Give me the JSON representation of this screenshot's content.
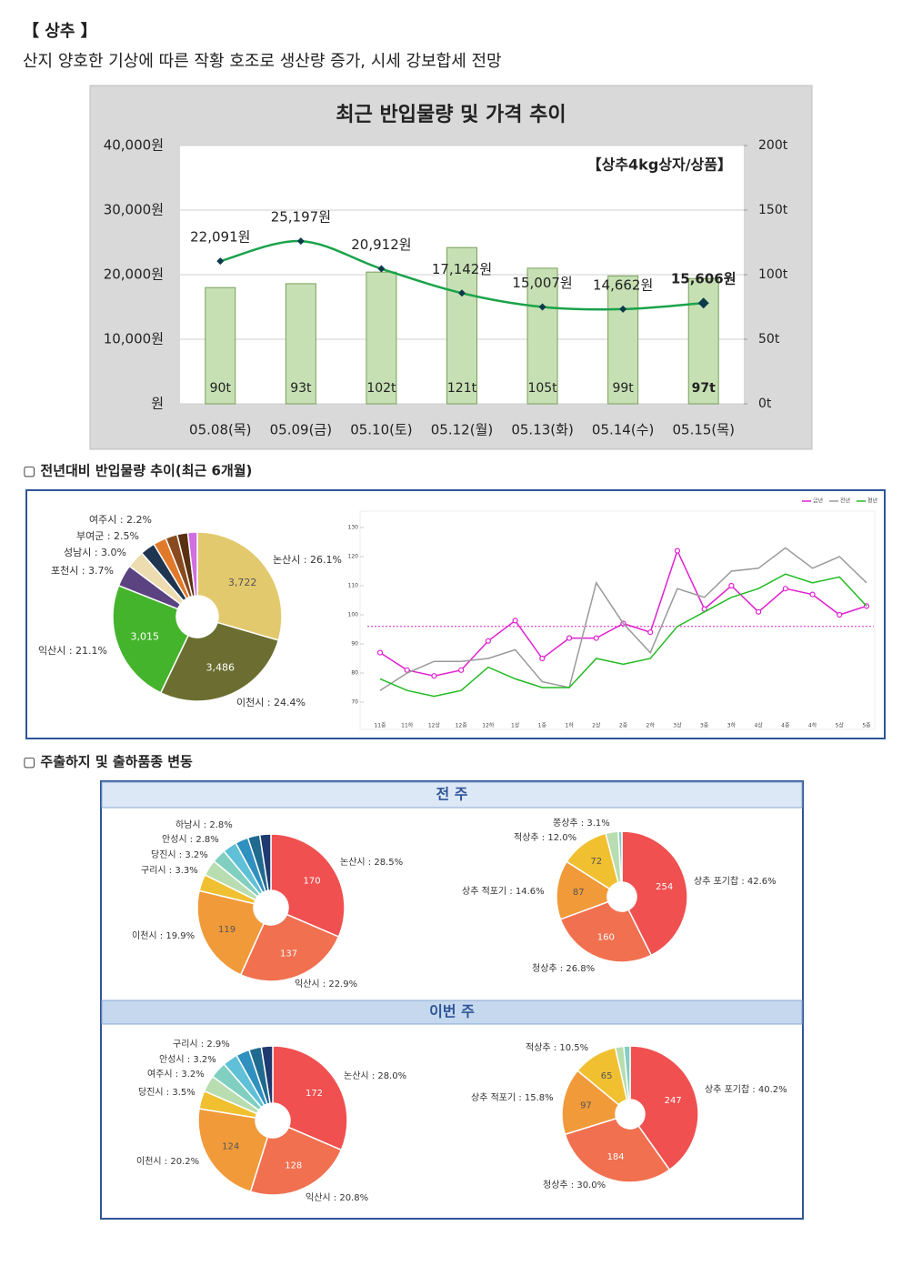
{
  "header": {
    "title": "【 상추 】",
    "subtitle": "산지 양호한 기상에 따른 작황 호조로 생산량 증가, 시세 강보합세 전망"
  },
  "sections": [
    "▢ 전년대비 반입물량 추이(최근 6개월)",
    "▢ 주출하지 및 출하품종 변동"
  ],
  "panels": [
    "전 주",
    "이번 주"
  ],
  "chart_data": [
    {
      "type": "bar_line",
      "title": "최근 반입물량 및 가격 추이",
      "annotation": "【상추4kg상자/상품】",
      "categories": [
        "05.08(목)",
        "05.09(금)",
        "05.10(토)",
        "05.12(월)",
        "05.13(화)",
        "05.14(수)",
        "05.15(목)"
      ],
      "series": [
        {
          "type": "bar",
          "axis": "y2",
          "color": "#c6e0b4",
          "values": [
            90,
            93,
            102,
            121,
            105,
            99,
            97
          ],
          "value_labels": [
            "90t",
            "93t",
            "102t",
            "121t",
            "105t",
            "99t",
            "97t"
          ]
        },
        {
          "type": "line",
          "color": "#1aa34a",
          "values": [
            22091,
            25197,
            20912,
            17142,
            15007,
            14662,
            15606
          ],
          "value_labels": [
            "22,091원",
            "25,197원",
            "20,912원",
            "17,142원",
            "15,007원",
            "14,662원",
            "15,606원"
          ]
        }
      ],
      "ylim": [
        0,
        40000
      ],
      "yticks": [
        {
          "value": 0,
          "label": "원"
        },
        {
          "value": 10000,
          "label": "10,000원"
        },
        {
          "value": 20000,
          "label": "20,000원"
        },
        {
          "value": 30000,
          "label": "30,000원"
        },
        {
          "value": 40000,
          "label": "40,000원"
        }
      ],
      "y2lim": [
        0,
        200
      ],
      "y2ticks": [
        {
          "value": 0,
          "label": "0t"
        },
        {
          "value": 50,
          "label": "50t"
        },
        {
          "value": 100,
          "label": "100t"
        },
        {
          "value": 150,
          "label": "150t"
        },
        {
          "value": 200,
          "label": "200t"
        }
      ],
      "grid": true
    },
    {
      "type": "donut",
      "labels": [
        "논산시 : 26.1%",
        "이천시 : 24.4%",
        "익산시 : 21.1%",
        "포천시 : 3.7%",
        "성남시 : 3.0%",
        "부여군 : 2.5%",
        "여주시 : 2.2%",
        null,
        null,
        null
      ],
      "values": [
        26.1,
        24.4,
        21.1,
        3.7,
        3.0,
        2.5,
        2.2,
        2.0,
        1.8,
        1.6
      ],
      "amount_labels": [
        "3,722",
        "3,486",
        "3,015",
        null,
        null,
        null,
        null,
        null,
        null,
        null
      ],
      "colors": [
        "#e3c96e",
        "#6b6e30",
        "#44b42c",
        "#5b4280",
        "#ecdcb0",
        "#1f3550",
        "#e07a2a",
        "#8a4a20",
        "#5a3010",
        "#d070e0"
      ]
    },
    {
      "type": "line",
      "categories": [
        "11중",
        "11하",
        "12상",
        "12중",
        "12하",
        "1상",
        "1중",
        "1하",
        "2상",
        "2중",
        "2하",
        "3상",
        "3중",
        "3하",
        "4상",
        "4중",
        "4하",
        "5상",
        "5중"
      ],
      "series": [
        {
          "name": "금년",
          "color": "#e020d0",
          "marker": true,
          "values": [
            87,
            81,
            79,
            81,
            91,
            98,
            85,
            92,
            92,
            97,
            94,
            122,
            102,
            110,
            101,
            109,
            107,
            100,
            103
          ]
        },
        {
          "name": "전년",
          "color": "#9a9a9a",
          "marker": false,
          "values": [
            74,
            80,
            84,
            84,
            85,
            88,
            77,
            75,
            111,
            97,
            87,
            109,
            106,
            115,
            116,
            123,
            116,
            120,
            111
          ]
        },
        {
          "name": "평년",
          "color": "#22bb22",
          "marker": false,
          "values": [
            78,
            74,
            72,
            74,
            82,
            78,
            75,
            75,
            85,
            83,
            85,
            96,
            101,
            106,
            109,
            114,
            111,
            113,
            103
          ]
        }
      ],
      "ylim": [
        68,
        132
      ],
      "yticks": [
        70,
        80,
        90,
        100,
        110,
        120,
        130
      ],
      "reference_line": 96,
      "reference_color": "#e020d0",
      "legend": "top-right"
    },
    {
      "type": "donut",
      "labels": [
        "논산시 : 28.5%",
        "익산시 : 22.9%",
        "이천시 : 19.9%",
        "구리시 : 3.3%",
        "당진시 : 3.2%",
        "안성시 : 2.8%",
        "하남시 : 2.8%",
        null,
        null,
        null
      ],
      "values": [
        28.5,
        22.9,
        19.9,
        3.3,
        3.2,
        2.8,
        2.8,
        2.6,
        2.4,
        2.2
      ],
      "amount_labels": [
        "170",
        "137",
        "119",
        null,
        null,
        null,
        null,
        null,
        null,
        null
      ],
      "colors": [
        "#f05050",
        "#f07050",
        "#f09a3a",
        "#f0c030",
        "#b8ddb0",
        "#80cfc0",
        "#60c0d8",
        "#3090c0",
        "#206a90",
        "#1f3a70"
      ]
    },
    {
      "type": "donut",
      "labels": [
        "상추 포기찹 : 42.6%",
        "청상추 : 26.8%",
        "상추 적포기 : 14.6%",
        "적상추 : 12.0%",
        "쫑상추 : 3.1%",
        null
      ],
      "values": [
        42.6,
        26.8,
        14.6,
        12.0,
        3.1,
        0.9
      ],
      "amount_labels": [
        "254",
        "160",
        "87",
        "72",
        null,
        null
      ],
      "colors": [
        "#f05050",
        "#f07050",
        "#f09a3a",
        "#f0c030",
        "#b8ddb0",
        "#80cfc0"
      ]
    },
    {
      "type": "donut",
      "labels": [
        "논산시 : 28.0%",
        "익산시 : 20.8%",
        "이천시 : 20.2%",
        "당진시 : 3.5%",
        "여주시 : 3.2%",
        "안성시 : 3.2%",
        "구리시 : 2.9%",
        null,
        null,
        null
      ],
      "values": [
        28.0,
        20.8,
        20.2,
        3.5,
        3.2,
        3.2,
        2.9,
        2.6,
        2.4,
        2.2
      ],
      "amount_labels": [
        "172",
        "128",
        "124",
        null,
        null,
        null,
        null,
        null,
        null,
        null
      ],
      "colors": [
        "#f05050",
        "#f07050",
        "#f09a3a",
        "#f0c030",
        "#b8ddb0",
        "#80cfc0",
        "#60c0d8",
        "#3090c0",
        "#206a90",
        "#1f3a70"
      ]
    },
    {
      "type": "donut",
      "labels": [
        "상추 포기찹 : 40.2%",
        "청상추 : 30.0%",
        "상추 적포기 : 15.8%",
        "적상추 : 10.5%",
        null,
        null
      ],
      "values": [
        40.2,
        30.0,
        15.8,
        10.5,
        2.0,
        1.5
      ],
      "amount_labels": [
        "247",
        "184",
        "97",
        "65",
        null,
        null
      ],
      "colors": [
        "#f05050",
        "#f07050",
        "#f09a3a",
        "#f0c030",
        "#b8ddb0",
        "#80cfc0"
      ]
    }
  ]
}
